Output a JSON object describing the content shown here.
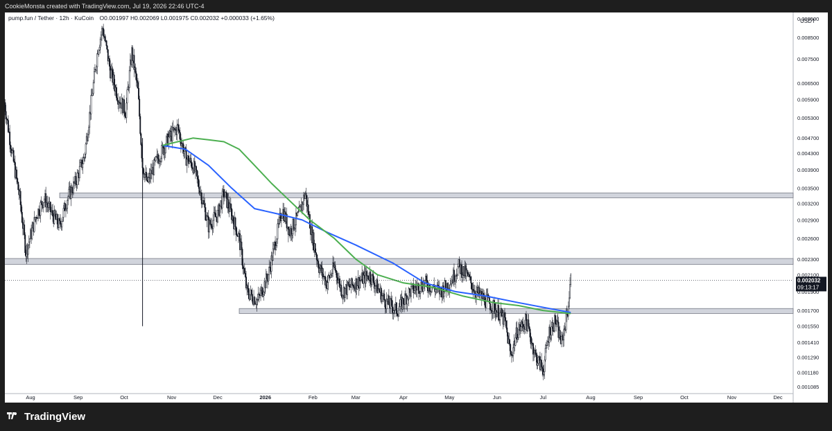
{
  "attribution": "CookieMonsta created with TradingView.com, Jul 19, 2026 22:46 UTC-4",
  "branding": "TradingView",
  "chart_data": {
    "type": "candlestick",
    "symbol_line": "pump.fun / Tether · 12h · KuCoin",
    "ohlc_text": "O0.001997  H0.002069  L0.001975  C0.002032  +0.000033 (+1.65%)",
    "currency_label": "USDT",
    "last_price": "0.002032",
    "countdown": "09:13:17",
    "y_scale": "log",
    "y_ticks": [
      "0.009500",
      "0.008500",
      "0.007500",
      "0.006500",
      "0.005900",
      "0.005300",
      "0.004700",
      "0.004300",
      "0.003900",
      "0.003500",
      "0.003200",
      "0.002900",
      "0.002600",
      "0.002300",
      "0.002100",
      "0.001900",
      "0.001700",
      "0.001550",
      "0.001410",
      "0.001290",
      "0.001180",
      "0.001085"
    ],
    "x_ticks": [
      {
        "label": "Aug",
        "date": "2025-08-01"
      },
      {
        "label": "Sep",
        "date": "2025-09-01"
      },
      {
        "label": "Oct",
        "date": "2025-10-01"
      },
      {
        "label": "Nov",
        "date": "2025-11-01"
      },
      {
        "label": "Dec",
        "date": "2025-12-01"
      },
      {
        "label": "2026",
        "date": "2026-01-01",
        "bold": true
      },
      {
        "label": "Feb",
        "date": "2026-02-01"
      },
      {
        "label": "Mar",
        "date": "2026-03-01"
      },
      {
        "label": "Apr",
        "date": "2026-04-01"
      },
      {
        "label": "May",
        "date": "2026-05-01"
      },
      {
        "label": "Jun",
        "date": "2026-06-01"
      },
      {
        "label": "Jul",
        "date": "2026-07-01"
      },
      {
        "label": "Aug",
        "date": "2026-08-01"
      },
      {
        "label": "Sep",
        "date": "2026-09-01"
      },
      {
        "label": "Oct",
        "date": "2026-10-01"
      },
      {
        "label": "Nov",
        "date": "2026-11-01"
      },
      {
        "label": "Dec",
        "date": "2026-12-01"
      }
    ],
    "price_path": [
      [
        "2025-07-15",
        0.0058
      ],
      [
        "2025-07-20",
        0.0043
      ],
      [
        "2025-07-25",
        0.0033
      ],
      [
        "2025-07-29",
        0.0024
      ],
      [
        "2025-08-05",
        0.003
      ],
      [
        "2025-08-10",
        0.0033
      ],
      [
        "2025-08-15",
        0.003
      ],
      [
        "2025-08-20",
        0.0028
      ],
      [
        "2025-08-25",
        0.0033
      ],
      [
        "2025-08-30",
        0.0036
      ],
      [
        "2025-09-05",
        0.0042
      ],
      [
        "2025-09-10",
        0.006
      ],
      [
        "2025-09-14",
        0.008
      ],
      [
        "2025-09-17",
        0.009
      ],
      [
        "2025-09-22",
        0.007
      ],
      [
        "2025-09-27",
        0.006
      ],
      [
        "2025-10-02",
        0.0055
      ],
      [
        "2025-10-06",
        0.0078
      ],
      [
        "2025-10-10",
        0.0062
      ],
      [
        "2025-10-13",
        0.004
      ],
      [
        "2025-10-16",
        0.0036
      ],
      [
        "2025-10-22",
        0.0041
      ],
      [
        "2025-10-30",
        0.0047
      ],
      [
        "2025-11-05",
        0.005
      ],
      [
        "2025-11-10",
        0.0042
      ],
      [
        "2025-11-15",
        0.004
      ],
      [
        "2025-11-20",
        0.0034
      ],
      [
        "2025-11-25",
        0.0028
      ],
      [
        "2025-12-01",
        0.003
      ],
      [
        "2025-12-05",
        0.0034
      ],
      [
        "2025-12-10",
        0.003
      ],
      [
        "2025-12-15",
        0.0026
      ],
      [
        "2025-12-20",
        0.0019
      ],
      [
        "2025-12-27",
        0.0018
      ],
      [
        "2026-01-03",
        0.0021
      ],
      [
        "2026-01-08",
        0.0026
      ],
      [
        "2026-01-12",
        0.0031
      ],
      [
        "2026-01-17",
        0.0027
      ],
      [
        "2026-01-23",
        0.003
      ],
      [
        "2026-01-27",
        0.0034
      ],
      [
        "2026-01-31",
        0.0027
      ],
      [
        "2026-02-05",
        0.0022
      ],
      [
        "2026-02-10",
        0.002
      ],
      [
        "2026-02-15",
        0.0022
      ],
      [
        "2026-02-20",
        0.0019
      ],
      [
        "2026-03-01",
        0.002
      ],
      [
        "2026-03-10",
        0.0021
      ],
      [
        "2026-03-20",
        0.0018
      ],
      [
        "2026-03-28",
        0.0017
      ],
      [
        "2026-04-05",
        0.0019
      ],
      [
        "2026-04-15",
        0.002
      ],
      [
        "2026-04-25",
        0.0019
      ],
      [
        "2026-05-01",
        0.002
      ],
      [
        "2026-05-07",
        0.0022
      ],
      [
        "2026-05-12",
        0.0021
      ],
      [
        "2026-05-18",
        0.0019
      ],
      [
        "2026-05-25",
        0.0018
      ],
      [
        "2026-06-01",
        0.0017
      ],
      [
        "2026-06-06",
        0.0016
      ],
      [
        "2026-06-10",
        0.0013
      ],
      [
        "2026-06-14",
        0.0015
      ],
      [
        "2026-06-20",
        0.0016
      ],
      [
        "2026-06-26",
        0.0013
      ],
      [
        "2026-07-01",
        0.0012
      ],
      [
        "2026-07-05",
        0.0015
      ],
      [
        "2026-07-09",
        0.0016
      ],
      [
        "2026-07-13",
        0.0014
      ],
      [
        "2026-07-17",
        0.0017
      ],
      [
        "2026-07-19",
        0.002032
      ]
    ],
    "series": [
      {
        "color": "#2962ff",
        "points": [
          [
            "2025-10-26",
            0.0045
          ],
          [
            "2025-11-10",
            0.0044
          ],
          [
            "2025-11-25",
            0.004
          ],
          [
            "2025-12-10",
            0.0035
          ],
          [
            "2025-12-25",
            0.0031
          ],
          [
            "2026-01-10",
            0.003
          ],
          [
            "2026-01-25",
            0.0029
          ],
          [
            "2026-02-10",
            0.0027
          ],
          [
            "2026-03-01",
            0.0025
          ],
          [
            "2026-03-25",
            0.00225
          ],
          [
            "2026-04-15",
            0.002
          ],
          [
            "2026-05-05",
            0.0019
          ],
          [
            "2026-05-25",
            0.00185
          ],
          [
            "2026-06-15",
            0.00178
          ],
          [
            "2026-07-05",
            0.00172
          ],
          [
            "2026-07-19",
            0.00168
          ]
        ]
      },
      {
        "color": "#4caf50",
        "points": [
          [
            "2025-10-26",
            0.0045
          ],
          [
            "2025-11-05",
            0.0046
          ],
          [
            "2025-11-15",
            0.0047
          ],
          [
            "2025-11-25",
            0.00465
          ],
          [
            "2025-12-05",
            0.0046
          ],
          [
            "2025-12-15",
            0.0044
          ],
          [
            "2025-12-25",
            0.004
          ],
          [
            "2026-01-05",
            0.0036
          ],
          [
            "2026-01-15",
            0.0033
          ],
          [
            "2026-01-30",
            0.0029
          ],
          [
            "2026-02-15",
            0.0026
          ],
          [
            "2026-03-01",
            0.0023
          ],
          [
            "2026-03-15",
            0.0021
          ],
          [
            "2026-04-01",
            0.002
          ],
          [
            "2026-04-20",
            0.00195
          ],
          [
            "2026-05-10",
            0.00185
          ],
          [
            "2026-05-30",
            0.00178
          ],
          [
            "2026-06-15",
            0.00175
          ],
          [
            "2026-07-01",
            0.0017
          ],
          [
            "2026-07-19",
            0.00167
          ]
        ]
      }
    ],
    "zones": [
      {
        "from": "2025-08-20",
        "to": "2026-12-20",
        "low": 0.00332,
        "high": 0.0034
      },
      {
        "from": "2025-07-01",
        "to": "2026-12-20",
        "low": 0.00223,
        "high": 0.00231
      },
      {
        "from": "2025-12-15",
        "to": "2026-12-20",
        "low": 0.00167,
        "high": 0.00172
      }
    ],
    "spikes": [
      {
        "date": "2025-10-13",
        "low": 0.00155,
        "high": 0.0047
      }
    ]
  }
}
